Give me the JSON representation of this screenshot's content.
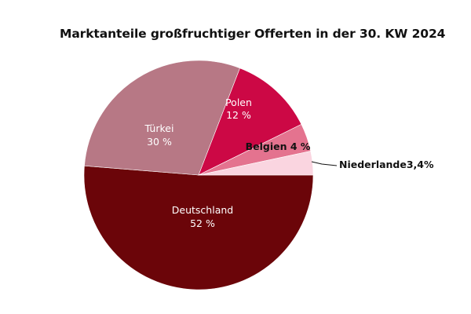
{
  "chart_data": {
    "type": "pie",
    "title": "Marktanteile großfruchtiger Offerten in der 30. KW 2024",
    "slices": [
      {
        "name": "Deutschland",
        "value": 52,
        "label": "52 %",
        "color": "#6b0509",
        "text_color": "#ffffff"
      },
      {
        "name": "Türkei",
        "value": 30,
        "label": "30 %",
        "color": "#b77885",
        "text_color": "#ffffff"
      },
      {
        "name": "Polen",
        "value": 12,
        "label": "12 %",
        "color": "#cc0845",
        "text_color": "#ffffff"
      },
      {
        "name": "Belgien",
        "value": 4,
        "label": "Belgien 4 %",
        "color": "#e4738f",
        "text_color": "#111111"
      },
      {
        "name": "Niederlande",
        "value": 3.4,
        "label": "Niederlande3,4%",
        "color": "#fad5e0",
        "text_color": "#111111"
      }
    ]
  }
}
